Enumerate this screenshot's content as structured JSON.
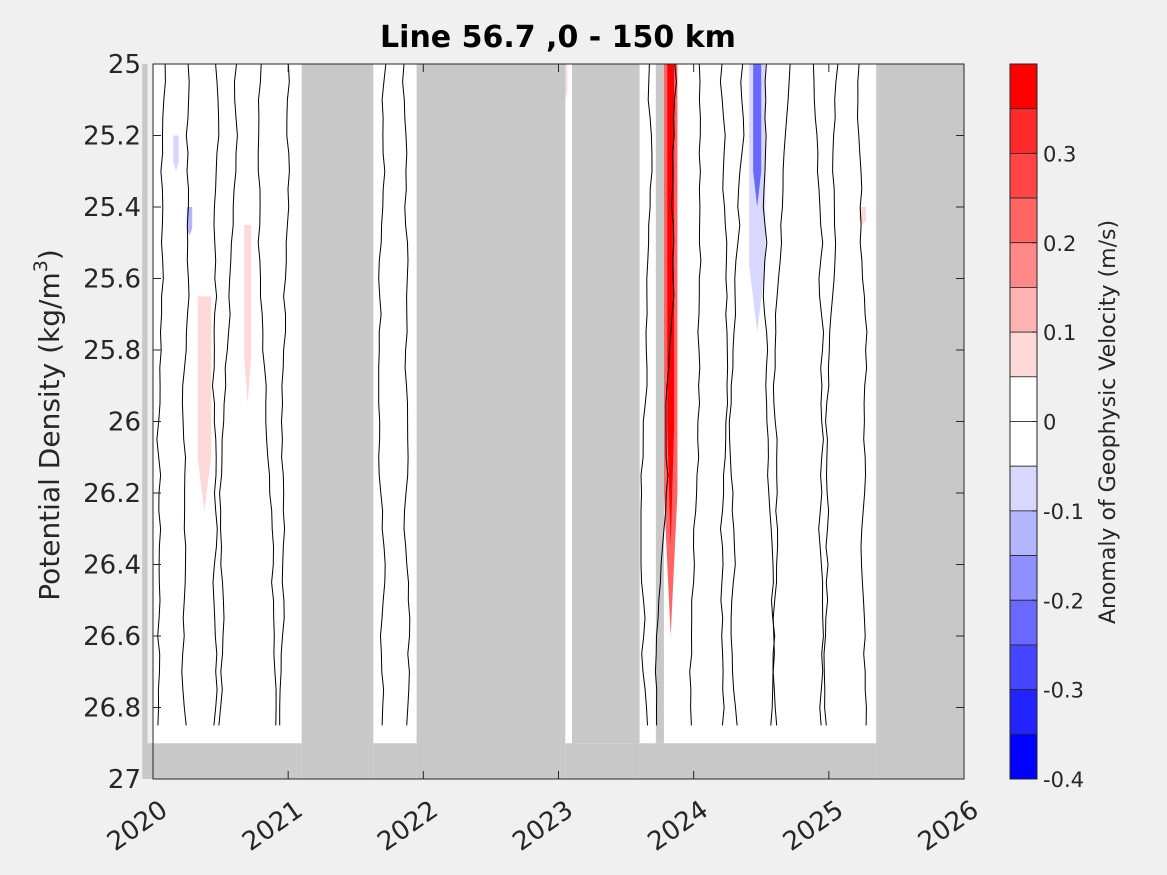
{
  "chart_data": {
    "type": "heatmap",
    "title": "Line 56.7 ,0 - 150 km",
    "xlabel": "",
    "ylabel": "Potential Density (kg/m",
    "ylabel_sup": "3",
    "ylabel_close": ")",
    "xlim": [
      2020,
      2026
    ],
    "ylim": [
      25,
      27
    ],
    "y_reversed": true,
    "xticks": [
      2020,
      2021,
      2022,
      2023,
      2024,
      2025,
      2026
    ],
    "xtick_labels": [
      "2020",
      "2021",
      "2022",
      "2023",
      "2024",
      "2025",
      "2026"
    ],
    "yticks": [
      25,
      25.2,
      25.4,
      25.6,
      25.8,
      26,
      26.2,
      26.4,
      26.6,
      26.8,
      27
    ],
    "ytick_labels": [
      "25",
      "25.2",
      "25.4",
      "25.6",
      "25.8",
      "26",
      "26.2",
      "26.4",
      "26.6",
      "26.8",
      "27"
    ],
    "colorbar": {
      "label": "Anomaly of Geophysic Velocity (m/s)",
      "range": [
        -0.4,
        0.4
      ],
      "tick_values": [
        0.3,
        0.2,
        0.1,
        0,
        -0.1,
        -0.2,
        -0.3,
        -0.4
      ],
      "tick_labels": [
        "0.3",
        "0.2",
        "0.1",
        "0",
        "-0.1",
        "-0.2",
        "-0.3",
        "-0.4"
      ],
      "levels": [
        {
          "from": 0.35,
          "to": 0.4,
          "color": "#ff0000"
        },
        {
          "from": 0.3,
          "to": 0.35,
          "color": "#ff2b2b"
        },
        {
          "from": 0.25,
          "to": 0.3,
          "color": "#ff4545"
        },
        {
          "from": 0.2,
          "to": 0.25,
          "color": "#ff6565"
        },
        {
          "from": 0.15,
          "to": 0.2,
          "color": "#ff8888"
        },
        {
          "from": 0.1,
          "to": 0.15,
          "color": "#ffb4b4"
        },
        {
          "from": 0.05,
          "to": 0.1,
          "color": "#ffd8d8"
        },
        {
          "from": 0,
          "to": 0.05,
          "color": "#ffffff"
        },
        {
          "from": -0.05,
          "to": 0,
          "color": "#ffffff"
        },
        {
          "from": -0.1,
          "to": -0.05,
          "color": "#d8d8ff"
        },
        {
          "from": -0.15,
          "to": -0.1,
          "color": "#b4b4ff"
        },
        {
          "from": -0.2,
          "to": -0.15,
          "color": "#8f8fff"
        },
        {
          "from": -0.25,
          "to": -0.2,
          "color": "#6969ff"
        },
        {
          "from": -0.3,
          "to": -0.25,
          "color": "#4545ff"
        },
        {
          "from": -0.35,
          "to": -0.3,
          "color": "#2323ff"
        },
        {
          "from": -0.4,
          "to": -0.35,
          "color": "#0000ff"
        }
      ]
    },
    "no_data_color": "#c8c8c8",
    "no_data_regions": [
      {
        "x0": 2019.92,
        "x1": 2021.1,
        "y0": 26.9,
        "y1": 27
      },
      {
        "x0": 2021.1,
        "x1": 2021.63,
        "y0": 25,
        "y1": 27
      },
      {
        "x0": 2021.63,
        "x1": 2021.95,
        "y0": 26.9,
        "y1": 27
      },
      {
        "x0": 2021.95,
        "x1": 2023.05,
        "y0": 25,
        "y1": 27
      },
      {
        "x0": 2023.05,
        "x1": 2023.6,
        "y0": 26.9,
        "y1": 27
      },
      {
        "x0": 2023.1,
        "x1": 2023.6,
        "y0": 25,
        "y1": 26.9
      },
      {
        "x0": 2023.6,
        "x1": 2025.35,
        "y0": 26.9,
        "y1": 27
      },
      {
        "x0": 2025.35,
        "x1": 2026,
        "y0": 25,
        "y1": 27
      },
      {
        "x0": 2023.72,
        "x1": 2023.78,
        "y0": 25,
        "y1": 26.9
      },
      {
        "x0": 2019.92,
        "x1": 2019.96,
        "y0": 25,
        "y1": 26.9
      }
    ],
    "anomalies": [
      {
        "x": 2023.83,
        "width": 0.05,
        "y0": 25,
        "y1": 26.35,
        "value": 0.37
      },
      {
        "x": 2023.83,
        "width": 0.1,
        "y0": 25,
        "y1": 26.6,
        "value": 0.2
      },
      {
        "x": 2024.47,
        "width": 0.12,
        "y0": 25,
        "y1": 25.75,
        "value": -0.1
      },
      {
        "x": 2024.47,
        "width": 0.06,
        "y0": 25,
        "y1": 25.4,
        "value": -0.25
      },
      {
        "x": 2020.38,
        "width": 0.1,
        "y0": 25.65,
        "y1": 26.25,
        "value": 0.08
      },
      {
        "x": 2020.7,
        "width": 0.05,
        "y0": 25.45,
        "y1": 25.95,
        "value": 0.08
      },
      {
        "x": 2020.27,
        "width": 0.04,
        "y0": 25.4,
        "y1": 25.48,
        "value": -0.12
      },
      {
        "x": 2020.17,
        "width": 0.04,
        "y0": 25.2,
        "y1": 25.3,
        "value": -0.08
      },
      {
        "x": 2025.25,
        "width": 0.05,
        "y0": 25.4,
        "y1": 25.45,
        "value": 0.08
      },
      {
        "x": 2023.05,
        "width": 0.03,
        "y0": 25,
        "y1": 25.1,
        "value": 0.08
      }
    ]
  }
}
